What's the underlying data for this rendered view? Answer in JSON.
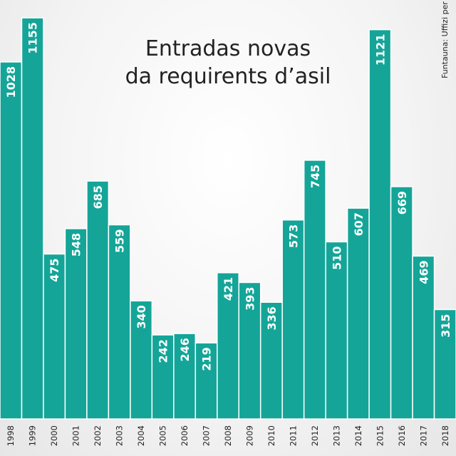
{
  "chart_data": {
    "type": "bar",
    "title_lines": [
      "Entradas novas",
      "da requirents d’asil"
    ],
    "source": "Funtauna: Uffizi per migraziun GR",
    "categories": [
      "1998",
      "1999",
      "2000",
      "2001",
      "2002",
      "2003",
      "2004",
      "2005",
      "2006",
      "2007",
      "2008",
      "2009",
      "2010",
      "2011",
      "2012",
      "2013",
      "2014",
      "2015",
      "2016",
      "2017",
      "2018"
    ],
    "values": [
      1028,
      1155,
      475,
      548,
      685,
      559,
      340,
      242,
      246,
      219,
      421,
      393,
      336,
      573,
      745,
      510,
      607,
      1121,
      669,
      469,
      315
    ],
    "data_labels": [
      "1028",
      "1155",
      "475",
      "548",
      "685",
      "559",
      "340",
      "242",
      "246",
      "219",
      "421",
      "393",
      "336",
      "573",
      "745",
      "510",
      "607",
      "1121",
      "669",
      "469",
      "315"
    ],
    "ylim": [
      0,
      1300
    ],
    "bar_color": "#14a598",
    "grid": false
  }
}
